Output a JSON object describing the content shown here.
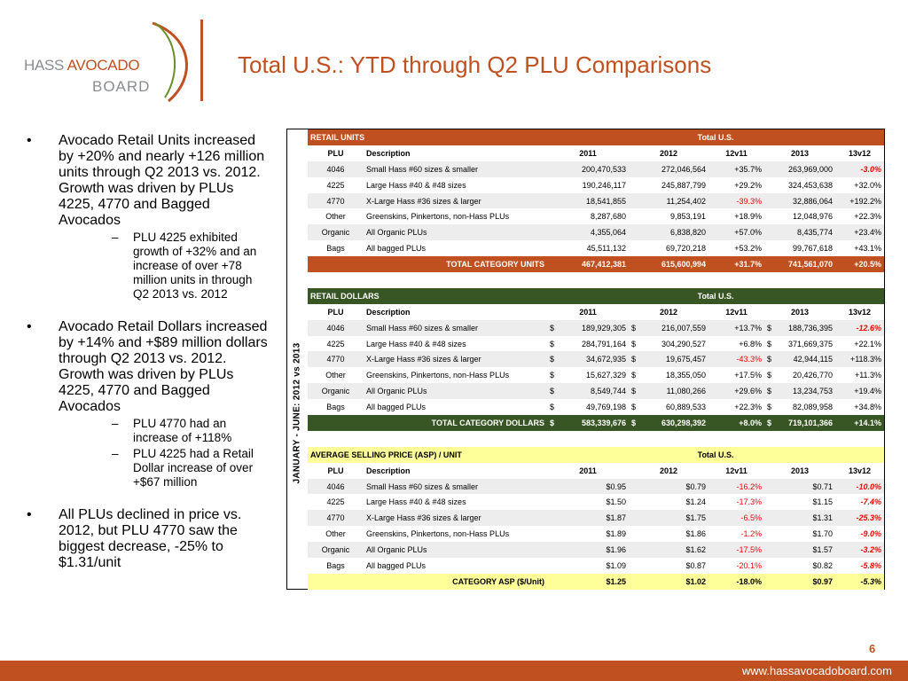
{
  "logo": {
    "hass": "HASS",
    "avocado": "AVOCADO",
    "board": "BOARD"
  },
  "title": "Total U.S.: YTD through Q2 PLU Comparisons",
  "bullets": [
    {
      "text": "Avocado Retail Units increased by +20% and nearly +126 million units through Q2 2013 vs. 2012. Growth was driven by PLUs 4225, 4770 and Bagged Avocados",
      "subs": [
        "PLU 4225 exhibited growth of +32% and an increase of over +78 million units in through Q2 2013 vs. 2012"
      ]
    },
    {
      "text": "Avocado Retail Dollars increased by +14% and +$89 million dollars through Q2 2013 vs. 2012. Growth was driven by PLUs 4225, 4770 and Bagged Avocados",
      "subs": [
        "PLU 4770 had an increase of +118%",
        "PLU 4225 had a Retail Dollar increase of over +$67 million"
      ]
    },
    {
      "text": "All PLUs declined in price vs. 2012, but PLU 4770 saw the biggest decrease, -25% to $1.31/unit",
      "subs": []
    }
  ],
  "side_label": "JANUARY - JUNE: 2012 vs 2013",
  "columns": [
    "PLU",
    "Description",
    "2011",
    "2012",
    "12v11",
    "2013",
    "13v12"
  ],
  "sections": [
    {
      "key": "units",
      "theme": "orange",
      "label": "RETAIL UNITS",
      "region": "Total U.S.",
      "dollar": false,
      "rows": [
        {
          "plu": "4046",
          "desc": "Small Hass #60 sizes & smaller",
          "y2011": "200,470,533",
          "y2012": "272,046,564",
          "c12": "+35.7%",
          "y2013": "263,969,000",
          "c13": "-3.0%",
          "c12neg": false,
          "c13neg": true
        },
        {
          "plu": "4225",
          "desc": "Large Hass #40 & #48 sizes",
          "y2011": "190,246,117",
          "y2012": "245,887,799",
          "c12": "+29.2%",
          "y2013": "324,453,638",
          "c13": "+32.0%",
          "c12neg": false,
          "c13neg": false
        },
        {
          "plu": "4770",
          "desc": "X-Large Hass #36 sizes & larger",
          "y2011": "18,541,855",
          "y2012": "11,254,402",
          "c12": "-39.3%",
          "y2013": "32,886,064",
          "c13": "+192.2%",
          "c12neg": true,
          "c13neg": false
        },
        {
          "plu": "Other",
          "desc": "Greenskins, Pinkertons, non-Hass PLUs",
          "y2011": "8,287,680",
          "y2012": "9,853,191",
          "c12": "+18.9%",
          "y2013": "12,048,976",
          "c13": "+22.3%",
          "c12neg": false,
          "c13neg": false
        },
        {
          "plu": "Organic",
          "desc": "All Organic PLUs",
          "y2011": "4,355,064",
          "y2012": "6,838,820",
          "c12": "+57.0%",
          "y2013": "8,435,774",
          "c13": "+23.4%",
          "c12neg": false,
          "c13neg": false
        },
        {
          "plu": "Bags",
          "desc": "All bagged PLUs",
          "y2011": "45,511,132",
          "y2012": "69,720,218",
          "c12": "+53.2%",
          "y2013": "99,767,618",
          "c13": "+43.1%",
          "c12neg": false,
          "c13neg": false
        }
      ],
      "total": {
        "label": "TOTAL CATEGORY UNITS",
        "y2011": "467,412,381",
        "y2012": "615,600,994",
        "c12": "+31.7%",
        "y2013": "741,561,070",
        "c13": "+20.5%",
        "c12neg": false,
        "c13neg": false
      }
    },
    {
      "key": "dollars",
      "theme": "green",
      "label": "RETAIL DOLLARS",
      "region": "Total U.S.",
      "dollar": true,
      "rows": [
        {
          "plu": "4046",
          "desc": "Small Hass #60 sizes & smaller",
          "y2011": "189,929,305",
          "y2012": "216,007,559",
          "c12": "+13.7%",
          "y2013": "188,736,395",
          "c13": "-12.6%",
          "c12neg": false,
          "c13neg": true
        },
        {
          "plu": "4225",
          "desc": "Large Hass #40 & #48 sizes",
          "y2011": "284,791,164",
          "y2012": "304,290,527",
          "c12": "+6.8%",
          "y2013": "371,669,375",
          "c13": "+22.1%",
          "c12neg": false,
          "c13neg": false
        },
        {
          "plu": "4770",
          "desc": "X-Large Hass #36 sizes & larger",
          "y2011": "34,672,935",
          "y2012": "19,675,457",
          "c12": "-43.3%",
          "y2013": "42,944,115",
          "c13": "+118.3%",
          "c12neg": true,
          "c13neg": false
        },
        {
          "plu": "Other",
          "desc": "Greenskins, Pinkertons, non-Hass PLUs",
          "y2011": "15,627,329",
          "y2012": "18,355,050",
          "c12": "+17.5%",
          "y2013": "20,426,770",
          "c13": "+11.3%",
          "c12neg": false,
          "c13neg": false
        },
        {
          "plu": "Organic",
          "desc": "All Organic PLUs",
          "y2011": "8,549,744",
          "y2012": "11,080,266",
          "c12": "+29.6%",
          "y2013": "13,234,753",
          "c13": "+19.4%",
          "c12neg": false,
          "c13neg": false
        },
        {
          "plu": "Bags",
          "desc": "All bagged PLUs",
          "y2011": "49,769,198",
          "y2012": "60,889,533",
          "c12": "+22.3%",
          "y2013": "82,089,958",
          "c13": "+34.8%",
          "c12neg": false,
          "c13neg": false
        }
      ],
      "total": {
        "label": "TOTAL CATEGORY DOLLARS",
        "y2011": "583,339,676",
        "y2012": "630,298,392",
        "c12": "+8.0%",
        "y2013": "719,101,366",
        "c13": "+14.1%",
        "c12neg": false,
        "c13neg": false
      }
    },
    {
      "key": "asp",
      "theme": "yellow",
      "label": "AVERAGE SELLING PRICE (ASP) / UNIT",
      "region": "Total U.S.",
      "dollar": false,
      "rows": [
        {
          "plu": "4046",
          "desc": "Small Hass #60 sizes & smaller",
          "y2011": "$0.95",
          "y2012": "$0.79",
          "c12": "-16.2%",
          "y2013": "$0.71",
          "c13": "-10.0%",
          "c12neg": true,
          "c13neg": true
        },
        {
          "plu": "4225",
          "desc": "Large Hass #40 & #48 sizes",
          "y2011": "$1.50",
          "y2012": "$1.24",
          "c12": "-17.3%",
          "y2013": "$1.15",
          "c13": "-7.4%",
          "c12neg": true,
          "c13neg": true
        },
        {
          "plu": "4770",
          "desc": "X-Large Hass #36 sizes & larger",
          "y2011": "$1.87",
          "y2012": "$1.75",
          "c12": "-6.5%",
          "y2013": "$1.31",
          "c13": "-25.3%",
          "c12neg": true,
          "c13neg": true
        },
        {
          "plu": "Other",
          "desc": "Greenskins, Pinkertons, non-Hass PLUs",
          "y2011": "$1.89",
          "y2012": "$1.86",
          "c12": "-1.2%",
          "y2013": "$1.70",
          "c13": "-9.0%",
          "c12neg": true,
          "c13neg": true
        },
        {
          "plu": "Organic",
          "desc": "All Organic PLUs",
          "y2011": "$1.96",
          "y2012": "$1.62",
          "c12": "-17.5%",
          "y2013": "$1.57",
          "c13": "-3.2%",
          "c12neg": true,
          "c13neg": true
        },
        {
          "plu": "Bags",
          "desc": "All bagged PLUs",
          "y2011": "$1.09",
          "y2012": "$0.87",
          "c12": "-20.1%",
          "y2013": "$0.82",
          "c13": "-5.8%",
          "c12neg": true,
          "c13neg": true
        }
      ],
      "total": {
        "label": "CATEGORY ASP ($/Unit)",
        "y2011": "$1.25",
        "y2012": "$1.02",
        "c12": "-18.0%",
        "y2013": "$0.97",
        "c13": "-5.3%",
        "c12neg": true,
        "c13neg": true
      }
    }
  ],
  "page_number": "6",
  "footer_url": "www.hassavocadoboard.com",
  "colors": {
    "brand_orange": "#c0501f",
    "brand_green": "#385623",
    "highlight_yellow": "#ffff99",
    "row_gray": "#ededed",
    "negative_red": "#ff0000",
    "logo_gray": "#8a8d8f"
  }
}
